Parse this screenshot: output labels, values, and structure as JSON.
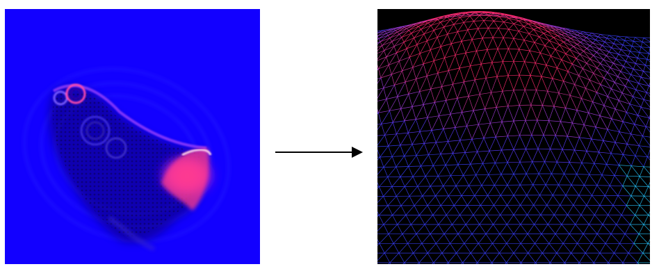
{
  "figure": {
    "left_image": {
      "kind": "normal-map",
      "background": "#1200ff",
      "highlight": "#ff2a8c",
      "accent_dark": "#0c0070"
    },
    "transform_arrow": {
      "direction": "right",
      "color": "#000000"
    },
    "right_image": {
      "kind": "wireframe-mesh",
      "background": "#000000",
      "mesh_colors": [
        "#ff2b6e",
        "#c43bdc",
        "#4a3cff",
        "#27c6ff"
      ]
    }
  }
}
